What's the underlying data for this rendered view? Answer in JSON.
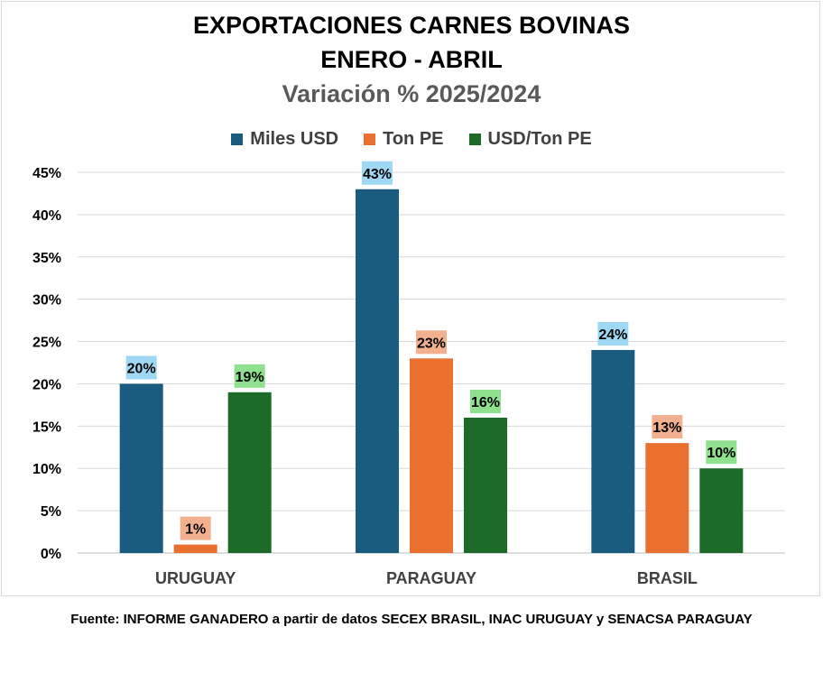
{
  "title_line1": "EXPORTACIONES CARNES BOVINAS",
  "title_line2": "ENERO - ABRIL",
  "title_line3": "Variación % 2025/2024",
  "source": "Fuente: INFORME GANADERO  a partir de datos SECEX BRASIL, INAC URUGUAY y SENACSA PARAGUAY",
  "chart_data": {
    "type": "bar",
    "categories": [
      "URUGUAY",
      "PARAGUAY",
      "BRASIL"
    ],
    "series": [
      {
        "name": "Miles USD",
        "values": [
          20,
          43,
          24
        ],
        "labels": [
          "20%",
          "43%",
          "24%"
        ],
        "color": "#1a5b80",
        "label_bg": "#9fd8f5"
      },
      {
        "name": "Ton PE",
        "values": [
          1,
          23,
          13
        ],
        "labels": [
          "1%",
          "23%",
          "13%"
        ],
        "color": "#ea7030",
        "label_bg": "#f2b08e"
      },
      {
        "name": "USD/Ton PE",
        "values": [
          19,
          16,
          10
        ],
        "labels": [
          "19%",
          "16%",
          "10%"
        ],
        "color": "#1c6b28",
        "label_bg": "#8fe08f"
      }
    ],
    "ylim": [
      0,
      45
    ],
    "yticks": [
      "0%",
      "5%",
      "10%",
      "15%",
      "20%",
      "25%",
      "30%",
      "35%",
      "40%",
      "45%"
    ],
    "grid": true,
    "legend_position": "top"
  }
}
